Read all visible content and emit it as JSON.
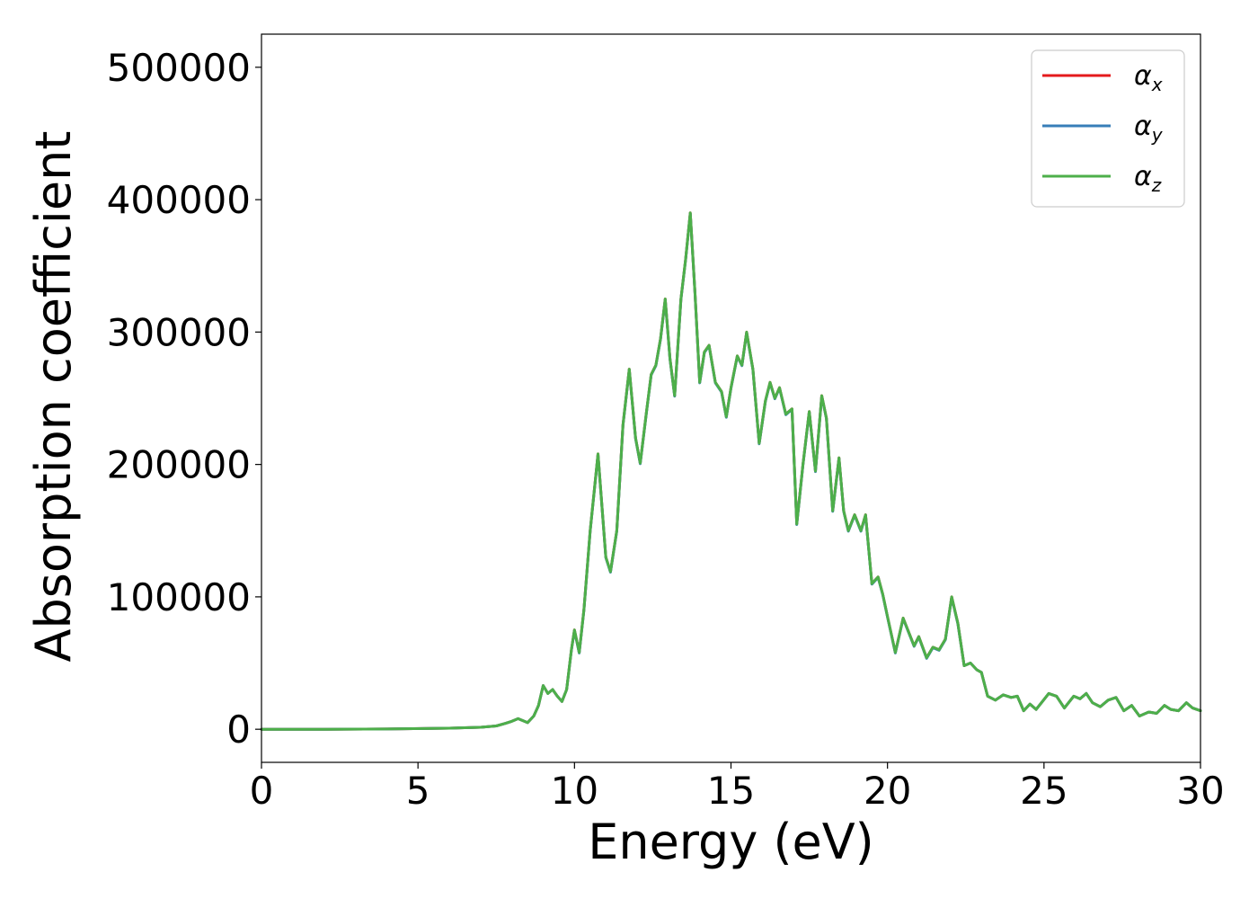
{
  "chart_data": {
    "type": "line",
    "title": "",
    "xlabel": "Energy (eV)",
    "ylabel": "Absorption coefficient",
    "xlim": [
      0,
      30
    ],
    "ylim": [
      -25000,
      525000
    ],
    "xticks": [
      0,
      5,
      10,
      15,
      20,
      25,
      30
    ],
    "yticks": [
      0,
      100000,
      200000,
      300000,
      400000,
      500000
    ],
    "grid": false,
    "legend_position": "top-right",
    "series": [
      {
        "name": "α",
        "subscript": "x",
        "color": "#e41a1c"
      },
      {
        "name": "α",
        "subscript": "y",
        "color": "#377eb8"
      },
      {
        "name": "α",
        "subscript": "z",
        "color": "#4daf4a"
      }
    ],
    "x": [
      0,
      2,
      4,
      6,
      7,
      7.5,
      7.8,
      8.0,
      8.2,
      8.35,
      8.5,
      8.7,
      8.85,
      9.0,
      9.15,
      9.3,
      9.45,
      9.6,
      9.75,
      9.9,
      10.0,
      10.15,
      10.3,
      10.5,
      10.75,
      11.0,
      11.15,
      11.35,
      11.55,
      11.75,
      11.95,
      12.1,
      12.3,
      12.45,
      12.6,
      12.75,
      12.9,
      13.05,
      13.2,
      13.4,
      13.55,
      13.7,
      13.85,
      14.0,
      14.15,
      14.3,
      14.5,
      14.7,
      14.85,
      15.0,
      15.2,
      15.35,
      15.5,
      15.7,
      15.9,
      16.1,
      16.25,
      16.4,
      16.55,
      16.75,
      16.95,
      17.1,
      17.3,
      17.5,
      17.7,
      17.9,
      18.05,
      18.25,
      18.45,
      18.6,
      18.75,
      18.95,
      19.15,
      19.3,
      19.5,
      19.7,
      19.85,
      20.0,
      20.25,
      20.5,
      20.65,
      20.85,
      21.0,
      21.25,
      21.45,
      21.65,
      21.85,
      22.05,
      22.25,
      22.45,
      22.65,
      22.85,
      23.0,
      23.2,
      23.45,
      23.7,
      23.95,
      24.15,
      24.35,
      24.55,
      24.75,
      24.95,
      25.15,
      25.4,
      25.65,
      25.95,
      26.15,
      26.35,
      26.55,
      26.8,
      27.05,
      27.3,
      27.55,
      27.8,
      28.05,
      28.35,
      28.6,
      28.85,
      29.05,
      29.3,
      29.55,
      29.75,
      30.0
    ],
    "y": [
      0,
      0,
      200,
      800,
      1500,
      2500,
      4500,
      6000,
      8000,
      6500,
      5000,
      10000,
      18000,
      33000,
      27000,
      30000,
      25000,
      21000,
      30000,
      60000,
      75000,
      58000,
      90000,
      150000,
      208000,
      130000,
      119000,
      150000,
      230000,
      272000,
      220000,
      201000,
      240000,
      268000,
      275000,
      295000,
      325000,
      280000,
      252000,
      325000,
      355000,
      390000,
      330000,
      262000,
      285000,
      290000,
      262000,
      255000,
      236000,
      258000,
      282000,
      275000,
      300000,
      272000,
      216000,
      248000,
      262000,
      250000,
      258000,
      238000,
      242000,
      155000,
      200000,
      240000,
      195000,
      252000,
      235000,
      165000,
      205000,
      165000,
      150000,
      162000,
      150000,
      162000,
      110000,
      115000,
      102000,
      85000,
      58000,
      84000,
      75000,
      63000,
      70000,
      54000,
      62000,
      60000,
      68000,
      100000,
      80000,
      48000,
      50000,
      45000,
      43000,
      25000,
      22000,
      26000,
      24000,
      25000,
      14000,
      19000,
      15000,
      21000,
      27000,
      25000,
      16000,
      25000,
      23000,
      27000,
      20000,
      17000,
      22000,
      24000,
      14000,
      18000,
      10000,
      13000,
      12000,
      18000,
      15000,
      14000,
      20000,
      16000,
      14000
    ]
  }
}
